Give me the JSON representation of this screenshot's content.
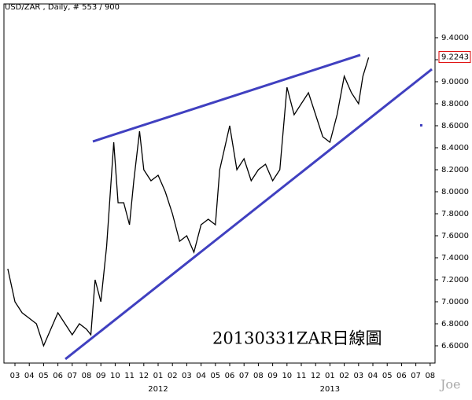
{
  "chart_data": {
    "type": "line",
    "title": "USD/ZAR , Daily, # 553 / 900",
    "annotation": "20130331ZAR日線圖",
    "watermark": "Joe",
    "x": [
      -0.5,
      0,
      0.5,
      1,
      1.5,
      2,
      2.5,
      3,
      3.5,
      4,
      4.5,
      5,
      5.3,
      5.6,
      6,
      6.4,
      6.9,
      7.2,
      7.6,
      8,
      8.3,
      8.7,
      9,
      9.5,
      10,
      10.5,
      11,
      11.5,
      12,
      12.5,
      13,
      13.5,
      14,
      14.3,
      15,
      15.5,
      16,
      16.5,
      17,
      17.5,
      18,
      18.5,
      19,
      19.5,
      20,
      20.5,
      21,
      21.5,
      22,
      22.5,
      23,
      23.5,
      24,
      24.3,
      24.7
    ],
    "series": [
      {
        "name": "USD/ZAR",
        "color": "#000000",
        "values": [
          7.3,
          7.0,
          6.9,
          6.85,
          6.8,
          6.6,
          6.75,
          6.9,
          6.8,
          6.7,
          6.8,
          6.75,
          6.7,
          7.2,
          7.0,
          7.5,
          8.45,
          7.9,
          7.9,
          7.7,
          8.1,
          8.55,
          8.2,
          8.1,
          8.15,
          8.0,
          7.8,
          7.55,
          7.6,
          7.45,
          7.7,
          7.75,
          7.7,
          8.2,
          8.6,
          8.2,
          8.3,
          8.1,
          8.2,
          8.25,
          8.1,
          8.2,
          8.95,
          8.7,
          8.8,
          8.9,
          8.7,
          8.5,
          8.45,
          8.7,
          9.05,
          8.9,
          8.8,
          9.05,
          9.22
        ]
      }
    ],
    "trendlines": [
      {
        "color": "#4040c0",
        "x": [
          5.44,
          24.12
        ],
        "y": [
          8.457,
          9.243
        ]
      },
      {
        "color": "#4040c0",
        "x": [
          3.52,
          29.12
        ],
        "y": [
          6.479,
          9.114
        ]
      }
    ],
    "last_value": 9.2243,
    "xlim": [
      -0.77,
      29.34
    ],
    "ylim": [
      6.443,
      9.707
    ],
    "xticks": [
      {
        "value": 0,
        "label": "03"
      },
      {
        "value": 1,
        "label": "04"
      },
      {
        "value": 2,
        "label": "05"
      },
      {
        "value": 3,
        "label": "06"
      },
      {
        "value": 4,
        "label": "07"
      },
      {
        "value": 5,
        "label": "08"
      },
      {
        "value": 6,
        "label": "09"
      },
      {
        "value": 7,
        "label": "10"
      },
      {
        "value": 8,
        "label": "11"
      },
      {
        "value": 9,
        "label": "12"
      },
      {
        "value": 10,
        "label": "01"
      },
      {
        "value": 11,
        "label": "02"
      },
      {
        "value": 12,
        "label": "03"
      },
      {
        "value": 13,
        "label": "04"
      },
      {
        "value": 14,
        "label": "05"
      },
      {
        "value": 15,
        "label": "06"
      },
      {
        "value": 16,
        "label": "07"
      },
      {
        "value": 17,
        "label": "08"
      },
      {
        "value": 18,
        "label": "09"
      },
      {
        "value": 19,
        "label": "10"
      },
      {
        "value": 20,
        "label": "11"
      },
      {
        "value": 21,
        "label": "12"
      },
      {
        "value": 22,
        "label": "01"
      },
      {
        "value": 23,
        "label": "02"
      },
      {
        "value": 24,
        "label": "03"
      },
      {
        "value": 25,
        "label": "04"
      },
      {
        "value": 26,
        "label": "05"
      },
      {
        "value": 27,
        "label": "06"
      },
      {
        "value": 28,
        "label": "07"
      },
      {
        "value": 29,
        "label": "08"
      }
    ],
    "year_labels": [
      {
        "value": 10,
        "label": "2012"
      },
      {
        "value": 22,
        "label": "2013"
      }
    ],
    "yticks": [
      {
        "value": 6.6,
        "label": "6.6000"
      },
      {
        "value": 6.8,
        "label": "6.8000"
      },
      {
        "value": 7.0,
        "label": "7.0000"
      },
      {
        "value": 7.2,
        "label": "7.2000"
      },
      {
        "value": 7.4,
        "label": "7.4000"
      },
      {
        "value": 7.6,
        "label": "7.6000"
      },
      {
        "value": 7.8,
        "label": "7.8000"
      },
      {
        "value": 8.0,
        "label": "8.0000"
      },
      {
        "value": 8.2,
        "label": "8.2000"
      },
      {
        "value": 8.4,
        "label": "8.4000"
      },
      {
        "value": 8.6,
        "label": "8.6000"
      },
      {
        "value": 8.8,
        "label": "8.8000"
      },
      {
        "value": 9.0,
        "label": "9.0000"
      },
      {
        "value": 9.2,
        "label": "9.2000"
      },
      {
        "value": 9.4,
        "label": "9.4000"
      }
    ]
  }
}
